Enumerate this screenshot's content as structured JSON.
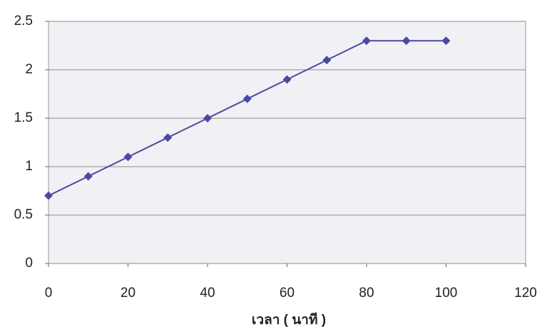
{
  "chart_data": {
    "type": "line",
    "x": [
      0,
      10,
      20,
      30,
      40,
      50,
      60,
      70,
      80,
      90,
      100
    ],
    "series": [
      {
        "color": "#4a4aa0",
        "values": [
          0.7,
          0.9,
          1.1,
          1.3,
          1.5,
          1.7,
          1.9,
          2.1,
          2.3,
          2.3,
          2.3
        ]
      }
    ],
    "x_label": "เวลา ( นาที )",
    "xlim": [
      0,
      120
    ],
    "xticks": [
      0,
      20,
      40,
      60,
      80,
      100,
      120
    ],
    "ylim": [
      0,
      2.5
    ],
    "yticks": [
      0,
      0.5,
      1,
      1.5,
      2,
      2.5
    ],
    "grid": true
  }
}
